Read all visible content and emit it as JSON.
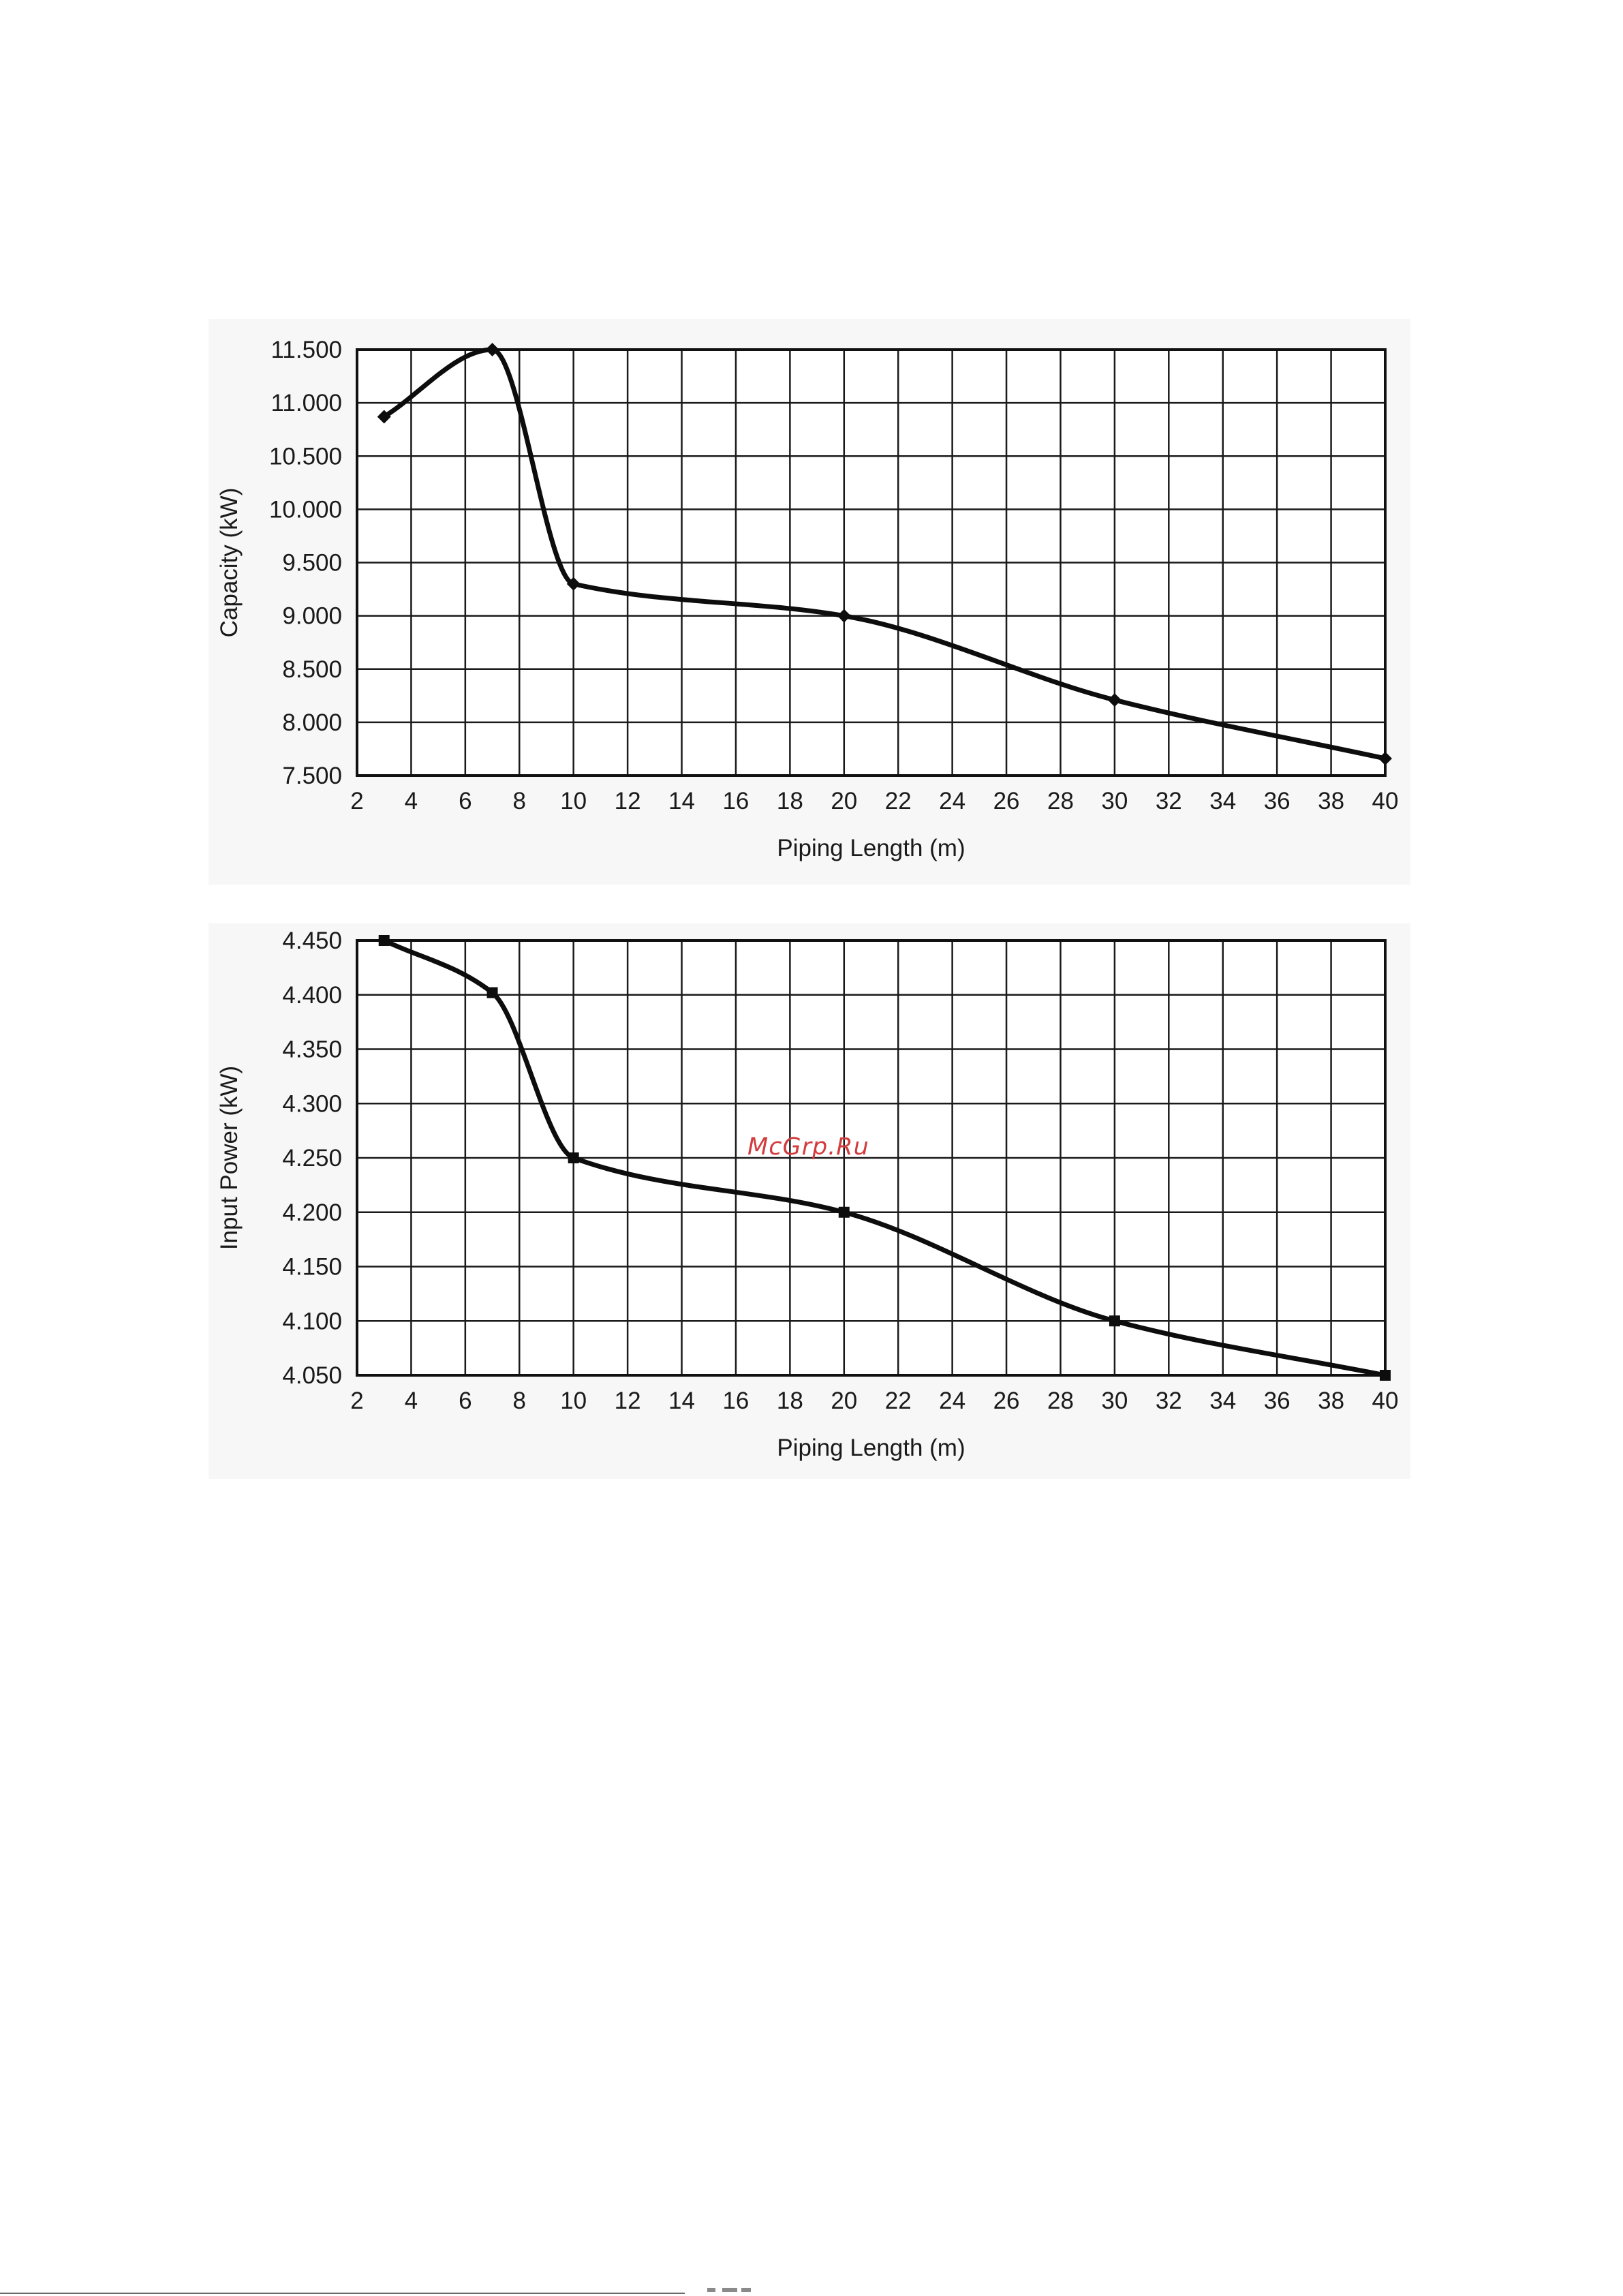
{
  "watermark": "McGrp.Ru",
  "chart_data": [
    {
      "type": "line",
      "title": "",
      "xlabel": "Piping Length (m)",
      "ylabel": "Capacity (kW)",
      "xlim": [
        2,
        40
      ],
      "ylim": [
        7.5,
        11.5
      ],
      "x_ticks": [
        "2",
        "4",
        "6",
        "8",
        "10",
        "12",
        "14",
        "16",
        "18",
        "20",
        "22",
        "24",
        "26",
        "28",
        "30",
        "32",
        "34",
        "36",
        "38",
        "40"
      ],
      "y_ticks": [
        "7.500",
        "8.000",
        "8.500",
        "9.000",
        "9.500",
        "10.000",
        "10.500",
        "11.000",
        "11.500"
      ],
      "grid": true,
      "marker": "diamond",
      "series": [
        {
          "x": [
            3,
            7,
            10,
            20,
            30,
            40
          ],
          "y": [
            10.87,
            11.5,
            9.3,
            9.0,
            8.21,
            7.66
          ]
        }
      ]
    },
    {
      "type": "line",
      "title": "",
      "xlabel": "Piping Length (m)",
      "ylabel": "Input Power (kW)",
      "xlim": [
        2,
        40
      ],
      "ylim": [
        4.05,
        4.45
      ],
      "x_ticks": [
        "2",
        "4",
        "6",
        "8",
        "10",
        "12",
        "14",
        "16",
        "18",
        "20",
        "22",
        "24",
        "26",
        "28",
        "30",
        "32",
        "34",
        "36",
        "38",
        "40"
      ],
      "y_ticks": [
        "4.050",
        "4.100",
        "4.150",
        "4.200",
        "4.250",
        "4.300",
        "4.350",
        "4.400",
        "4.450"
      ],
      "grid": true,
      "marker": "square",
      "series": [
        {
          "x": [
            3,
            7,
            10,
            20,
            30,
            40
          ],
          "y": [
            4.45,
            4.402,
            4.25,
            4.2,
            4.1,
            4.05
          ]
        }
      ]
    }
  ]
}
